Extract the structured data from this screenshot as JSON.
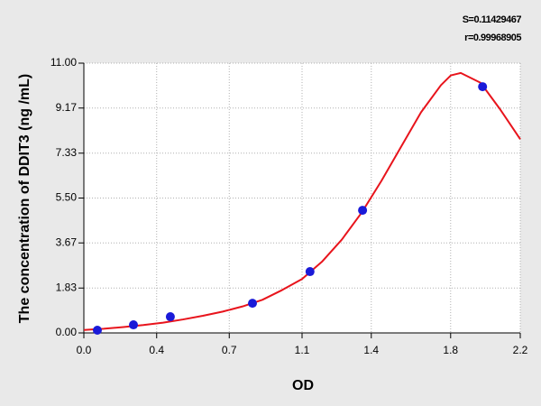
{
  "chart_data": {
    "type": "scatter",
    "xlabel": "OD",
    "ylabel": "The concentration of DDIT3 (ng /mL)",
    "annotations": [
      "S=0.11429467",
      "r=0.99968905"
    ],
    "xlim": [
      0,
      2.2
    ],
    "ylim": [
      0,
      11
    ],
    "xticks": [
      {
        "value": 0,
        "label": "0.0"
      },
      {
        "value": 0.367,
        "label": "0.4"
      },
      {
        "value": 0.733,
        "label": "0.7"
      },
      1.1,
      {
        "value": 1.449,
        "label": "1.4"
      },
      {
        "value": 1.849,
        "label": "1.8"
      },
      2.2
    ],
    "yticks": [
      {
        "value": 0,
        "label": "0.00"
      },
      1.83,
      3.67,
      {
        "value": 5.5,
        "label": "5.50"
      },
      7.33,
      9.17,
      {
        "value": 11,
        "label": "11.00"
      }
    ],
    "grid": true,
    "points": {
      "color": "#1a1ad8",
      "x": [
        0.068,
        0.25,
        0.436,
        0.85,
        1.14,
        1.405,
        2.01
      ],
      "values": [
        0.11,
        0.33,
        0.66,
        1.21,
        2.5,
        5.0,
        10.04
      ]
    },
    "curve": {
      "color": "#e8141c",
      "x": [
        0,
        0.1,
        0.2,
        0.3,
        0.4,
        0.5,
        0.6,
        0.7,
        0.8,
        0.9,
        1.0,
        1.1,
        1.2,
        1.3,
        1.4,
        1.5,
        1.6,
        1.7,
        1.8,
        1.85,
        1.9,
        2.0,
        2.1,
        2.2
      ],
      "values": [
        0.12,
        0.17,
        0.24,
        0.32,
        0.42,
        0.55,
        0.7,
        0.87,
        1.08,
        1.35,
        1.75,
        2.2,
        2.9,
        3.8,
        4.9,
        6.2,
        7.6,
        9.0,
        10.1,
        10.5,
        10.6,
        10.2,
        9.1,
        7.9
      ]
    }
  }
}
